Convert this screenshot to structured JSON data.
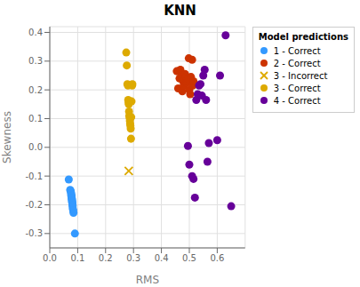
{
  "chart_data": {
    "type": "scatter",
    "title": "KNN",
    "xlabel": "RMS",
    "ylabel": "Skewness",
    "xlim": [
      0.0,
      0.7
    ],
    "ylim": [
      -0.35,
      0.42
    ],
    "xticks": [
      {
        "value": 0.0,
        "label": "0.0"
      },
      0.1,
      0.2,
      0.3,
      0.4,
      0.5,
      0.6
    ],
    "yticks": [
      -0.3,
      -0.2,
      -0.1,
      {
        "value": 0.0,
        "label": "0.0"
      },
      0.1,
      0.2,
      0.3,
      0.4
    ],
    "grid": true,
    "legend": "right",
    "legend_title": "Model predictions",
    "series": [
      {
        "name": "1 - Correct",
        "color": "#3399ff",
        "marker": "circle",
        "x": [
          0.068,
          0.073,
          0.075,
          0.076,
          0.077,
          0.077,
          0.078,
          0.078,
          0.079,
          0.079,
          0.08,
          0.08,
          0.081,
          0.081,
          0.082,
          0.082,
          0.083,
          0.084,
          0.085,
          0.09
        ],
        "y": [
          -0.112,
          -0.148,
          -0.152,
          -0.158,
          -0.163,
          -0.168,
          -0.17,
          -0.175,
          -0.178,
          -0.182,
          -0.185,
          -0.19,
          -0.193,
          -0.198,
          -0.202,
          -0.208,
          -0.215,
          -0.22,
          -0.228,
          -0.3
        ]
      },
      {
        "name": "2 - Correct",
        "color": "#cc3300",
        "marker": "circle",
        "x": [
          0.455,
          0.46,
          0.465,
          0.468,
          0.472,
          0.475,
          0.478,
          0.48,
          0.482,
          0.485,
          0.488,
          0.49,
          0.492,
          0.495,
          0.498,
          0.5,
          0.503,
          0.506,
          0.51,
          0.512,
          0.515
        ],
        "y": [
          0.265,
          0.205,
          0.24,
          0.27,
          0.25,
          0.195,
          0.23,
          0.215,
          0.235,
          0.255,
          0.245,
          0.225,
          0.23,
          0.24,
          0.31,
          0.2,
          0.185,
          0.245,
          0.305,
          0.215,
          0.23
        ]
      },
      {
        "name": "3 - Incorrect",
        "color": "#ddaa00",
        "marker": "x",
        "x": [
          0.283
        ],
        "y": [
          -0.082
        ]
      },
      {
        "name": "3 - Correct",
        "color": "#ddaa00",
        "marker": "circle",
        "x": [
          0.274,
          0.276,
          0.278,
          0.28,
          0.281,
          0.282,
          0.283,
          0.284,
          0.285,
          0.286,
          0.287,
          0.287,
          0.288,
          0.289,
          0.29,
          0.291,
          0.292,
          0.293,
          0.295,
          0.296
        ],
        "y": [
          0.33,
          0.285,
          0.22,
          0.215,
          0.165,
          0.158,
          0.15,
          0.125,
          0.11,
          0.105,
          0.1,
          0.092,
          0.082,
          0.075,
          0.065,
          0.03,
          0.105,
          0.16,
          0.215,
          0.22
        ]
      },
      {
        "name": "4 - Correct",
        "color": "#660099",
        "marker": "circle",
        "x": [
          0.495,
          0.5,
          0.51,
          0.515,
          0.52,
          0.525,
          0.53,
          0.535,
          0.54,
          0.545,
          0.55,
          0.555,
          0.56,
          0.565,
          0.57,
          0.6,
          0.61,
          0.63,
          0.65
        ],
        "y": [
          0.005,
          -0.06,
          -0.1,
          -0.11,
          -0.175,
          0.165,
          0.185,
          0.215,
          0.22,
          0.18,
          0.25,
          0.27,
          0.165,
          -0.05,
          0.015,
          0.025,
          0.25,
          0.39,
          -0.205
        ]
      }
    ]
  }
}
